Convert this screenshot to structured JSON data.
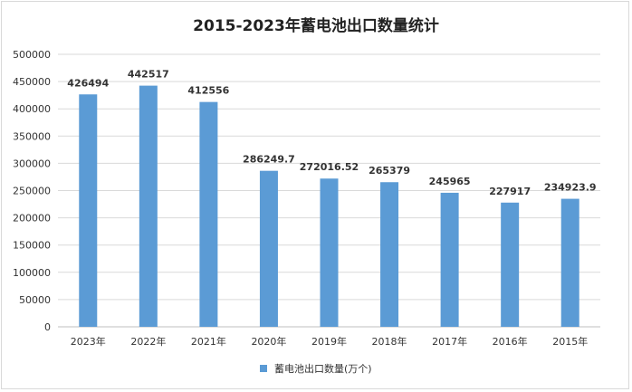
{
  "chart_data": {
    "type": "bar",
    "title": "2015-2023年蓄电池出口数量统计",
    "categories": [
      "2023年",
      "2022年",
      "2021年",
      "2020年",
      "2019年",
      "2018年",
      "2017年",
      "2016年",
      "2015年"
    ],
    "series": [
      {
        "name": "蓄电池出口数量(万个)",
        "values": [
          426494,
          442517,
          412556,
          286249.7,
          272016.52,
          265379,
          245965,
          227917,
          234923.9
        ],
        "labels": [
          "426494",
          "442517",
          "412556",
          "286249.7",
          "272016.52",
          "265379",
          "245965",
          "227917",
          "234923.9"
        ]
      }
    ],
    "ylim": [
      0,
      500000
    ],
    "yticks": [
      0,
      50000,
      100000,
      150000,
      200000,
      250000,
      300000,
      350000,
      400000,
      450000,
      500000
    ],
    "grid": true,
    "legend": "bottom",
    "colors": {
      "bar": "#5b9bd5",
      "grid": "#d9d9d9"
    }
  }
}
